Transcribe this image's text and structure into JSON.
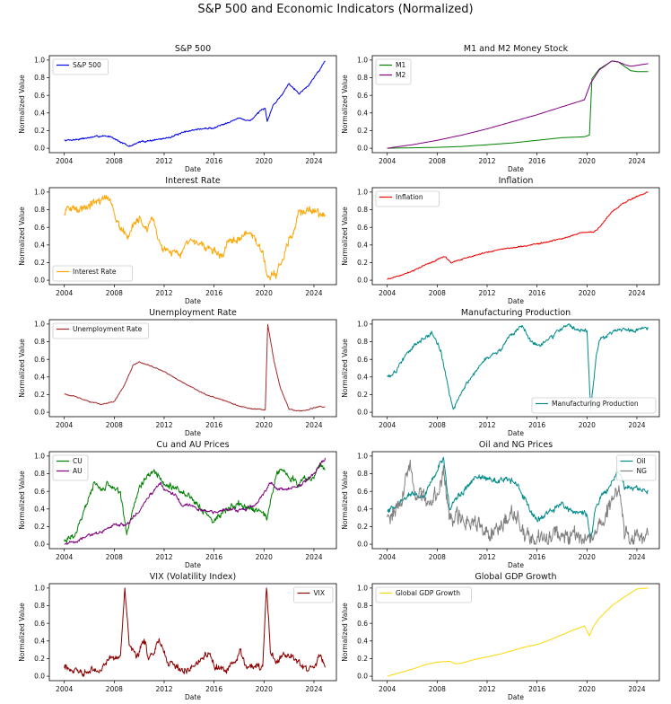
{
  "figure": {
    "title": "S&P 500 and Economic Indicators (Normalized)"
  },
  "chart_data": [
    {
      "type": "line",
      "title": "S&P 500",
      "xlabel": "Date",
      "ylabel": "Normalized Value",
      "xlim": [
        2002.8,
        2025.8
      ],
      "ylim": [
        -0.05,
        1.05
      ],
      "legend": "upper left",
      "x_ticks": [
        "2004",
        "2008",
        "2012",
        "2016",
        "2020",
        "2024"
      ],
      "y_ticks": [
        "0.0",
        "0.2",
        "0.4",
        "0.6",
        "0.8",
        "1.0"
      ],
      "series": [
        {
          "name": "S&P 500",
          "color": "#0000ee",
          "noise": 0.008,
          "x": [
            2004,
            2005,
            2006,
            2007,
            2007.8,
            2008.5,
            2009.2,
            2010,
            2011,
            2012,
            2013,
            2014,
            2015,
            2016,
            2017,
            2018,
            2018.9,
            2019.5,
            2020.1,
            2020.25,
            2020.7,
            2021.5,
            2022,
            2022.8,
            2023.5,
            2024.3,
            2024.9
          ],
          "y": [
            0.09,
            0.1,
            0.12,
            0.14,
            0.13,
            0.07,
            0.02,
            0.07,
            0.09,
            0.11,
            0.15,
            0.2,
            0.22,
            0.23,
            0.29,
            0.34,
            0.31,
            0.4,
            0.45,
            0.3,
            0.48,
            0.62,
            0.74,
            0.62,
            0.7,
            0.86,
            0.99
          ]
        }
      ]
    },
    {
      "type": "line",
      "title": "M1 and M2 Money Stock",
      "xlabel": "Date",
      "ylabel": "Normalized Value",
      "xlim": [
        2002.8,
        2025.8
      ],
      "ylim": [
        -0.05,
        1.05
      ],
      "legend": "upper left",
      "x_ticks": [
        "2004",
        "2008",
        "2012",
        "2016",
        "2020",
        "2024"
      ],
      "y_ticks": [
        "0.0",
        "0.2",
        "0.4",
        "0.6",
        "0.8",
        "1.0"
      ],
      "series": [
        {
          "name": "M1",
          "color": "#008000",
          "noise": 0,
          "x": [
            2004,
            2008,
            2010,
            2012,
            2014,
            2016,
            2018,
            2019.8,
            2020.2,
            2020.4,
            2021,
            2022,
            2022.5,
            2023,
            2023.5,
            2024,
            2024.9
          ],
          "y": [
            0.0,
            0.01,
            0.02,
            0.04,
            0.06,
            0.09,
            0.12,
            0.13,
            0.15,
            0.79,
            0.9,
            0.99,
            0.98,
            0.93,
            0.88,
            0.87,
            0.87
          ]
        },
        {
          "name": "M2",
          "color": "#800080",
          "noise": 0,
          "x": [
            2004,
            2006,
            2008,
            2010,
            2012,
            2014,
            2016,
            2018,
            2019.8,
            2020.3,
            2021,
            2022,
            2022.5,
            2023,
            2023.5,
            2024,
            2024.9
          ],
          "y": [
            0.0,
            0.04,
            0.09,
            0.15,
            0.22,
            0.3,
            0.38,
            0.47,
            0.55,
            0.74,
            0.89,
            0.99,
            0.98,
            0.95,
            0.93,
            0.94,
            0.96
          ]
        }
      ]
    },
    {
      "type": "line",
      "title": "Interest Rate",
      "xlabel": "Date",
      "ylabel": "Normalized Value",
      "xlim": [
        2002.8,
        2025.8
      ],
      "ylim": [
        -0.05,
        1.05
      ],
      "legend": "lower left",
      "x_ticks": [
        "2004",
        "2008",
        "2012",
        "2016",
        "2020",
        "2024"
      ],
      "y_ticks": [
        "0.0",
        "0.2",
        "0.4",
        "0.6",
        "0.8",
        "1.0"
      ],
      "series": [
        {
          "name": "Interest Rate",
          "color": "#ffa500",
          "noise": 0.04,
          "x": [
            2004,
            2004.5,
            2005,
            2006,
            2006.7,
            2007.5,
            2008,
            2008.5,
            2009,
            2010,
            2010.6,
            2011,
            2011.6,
            2012.5,
            2013.5,
            2014,
            2015,
            2016,
            2016.6,
            2017,
            2018,
            2018.8,
            2019.5,
            2020,
            2020.3,
            2021,
            2021.5,
            2022,
            2022.8,
            2023.5,
            2024,
            2024.9
          ],
          "y": [
            0.76,
            0.82,
            0.8,
            0.87,
            0.86,
            0.96,
            0.78,
            0.6,
            0.5,
            0.7,
            0.55,
            0.68,
            0.42,
            0.33,
            0.3,
            0.47,
            0.4,
            0.32,
            0.25,
            0.44,
            0.47,
            0.56,
            0.38,
            0.25,
            0.05,
            0.06,
            0.24,
            0.45,
            0.75,
            0.8,
            0.78,
            0.73
          ]
        }
      ]
    },
    {
      "type": "line",
      "title": "Inflation",
      "xlabel": "Date",
      "ylabel": "Normalized Value",
      "xlim": [
        2002.8,
        2025.8
      ],
      "ylim": [
        -0.05,
        1.05
      ],
      "legend": "upper left",
      "x_ticks": [
        "2004",
        "2008",
        "2012",
        "2016",
        "2020",
        "2024"
      ],
      "y_ticks": [
        "0.0",
        "0.2",
        "0.4",
        "0.6",
        "0.8",
        "1.0"
      ],
      "series": [
        {
          "name": "Inflation",
          "color": "#ee0000",
          "noise": 0.006,
          "x": [
            2004,
            2006,
            2007,
            2008.6,
            2009.1,
            2010,
            2011,
            2012,
            2014,
            2016,
            2018,
            2019.5,
            2020.2,
            2020.5,
            2021,
            2022,
            2023,
            2024,
            2024.9
          ],
          "y": [
            0.01,
            0.1,
            0.17,
            0.27,
            0.2,
            0.24,
            0.28,
            0.32,
            0.37,
            0.41,
            0.47,
            0.54,
            0.55,
            0.54,
            0.6,
            0.78,
            0.88,
            0.95,
            1.0
          ]
        }
      ]
    },
    {
      "type": "line",
      "title": "Unemployment Rate",
      "xlabel": "Date",
      "ylabel": "Normalized Value",
      "xlim": [
        2002.8,
        2025.8
      ],
      "ylim": [
        -0.05,
        1.05
      ],
      "legend": "upper left",
      "x_ticks": [
        "2004",
        "2008",
        "2012",
        "2016",
        "2020",
        "2024"
      ],
      "y_ticks": [
        "0.0",
        "0.2",
        "0.4",
        "0.6",
        "0.8",
        "1.0"
      ],
      "series": [
        {
          "name": "Unemployment Rate",
          "color": "#a52a2a",
          "noise": 0.005,
          "x": [
            2004,
            2005,
            2006,
            2007,
            2008,
            2008.8,
            2009.5,
            2010,
            2011,
            2012,
            2013,
            2014,
            2015,
            2016,
            2017,
            2018,
            2019,
            2020.1,
            2020.3,
            2020.8,
            2021.3,
            2022,
            2023,
            2024,
            2024.5,
            2024.9
          ],
          "y": [
            0.21,
            0.17,
            0.12,
            0.09,
            0.12,
            0.3,
            0.53,
            0.57,
            0.52,
            0.46,
            0.38,
            0.3,
            0.22,
            0.17,
            0.12,
            0.07,
            0.04,
            0.03,
            1.0,
            0.58,
            0.28,
            0.04,
            0.01,
            0.05,
            0.07,
            0.06
          ]
        }
      ]
    },
    {
      "type": "line",
      "title": "Manufacturing Production",
      "xlabel": "Date",
      "ylabel": "Normalized Value",
      "xlim": [
        2002.8,
        2025.8
      ],
      "ylim": [
        -0.05,
        1.05
      ],
      "legend": "lower right",
      "x_ticks": [
        "2004",
        "2008",
        "2012",
        "2016",
        "2020",
        "2024"
      ],
      "y_ticks": [
        "0.0",
        "0.2",
        "0.4",
        "0.6",
        "0.8",
        "1.0"
      ],
      "series": [
        {
          "name": "Manufacturing Production",
          "color": "#008b8b",
          "noise": 0.02,
          "x": [
            2004,
            2004.7,
            2005,
            2006,
            2007,
            2007.6,
            2008.3,
            2009,
            2009.3,
            2010,
            2011,
            2012,
            2013,
            2014,
            2014.8,
            2015.5,
            2016,
            2017,
            2018,
            2018.6,
            2019.5,
            2020,
            2020.3,
            2020.7,
            2021,
            2022,
            2023,
            2024,
            2024.9
          ],
          "y": [
            0.4,
            0.46,
            0.55,
            0.73,
            0.85,
            0.89,
            0.7,
            0.2,
            0.01,
            0.25,
            0.45,
            0.62,
            0.7,
            0.88,
            0.98,
            0.8,
            0.76,
            0.83,
            0.95,
            0.99,
            0.92,
            0.93,
            0.02,
            0.6,
            0.82,
            0.91,
            0.93,
            0.93,
            0.95
          ]
        }
      ]
    },
    {
      "type": "line",
      "title": "Cu and AU Prices",
      "xlabel": "Date",
      "ylabel": "Normalized Value",
      "xlim": [
        2002.8,
        2025.8
      ],
      "ylim": [
        -0.05,
        1.05
      ],
      "legend": "upper left",
      "x_ticks": [
        "2004",
        "2008",
        "2012",
        "2016",
        "2020",
        "2024"
      ],
      "y_ticks": [
        "0.0",
        "0.2",
        "0.4",
        "0.6",
        "0.8",
        "1.0"
      ],
      "series": [
        {
          "name": "CU",
          "color": "#008000",
          "noise": 0.03,
          "x": [
            2004,
            2005,
            2006,
            2006.4,
            2007,
            2007.5,
            2008.5,
            2009,
            2010,
            2011,
            2011.5,
            2012,
            2013,
            2014,
            2015,
            2016,
            2017,
            2018,
            2019,
            2019.9,
            2020.2,
            2021,
            2021.5,
            2022,
            2022.8,
            2023,
            2024,
            2024.4,
            2024.9
          ],
          "y": [
            0.05,
            0.12,
            0.55,
            0.72,
            0.62,
            0.7,
            0.58,
            0.1,
            0.65,
            0.82,
            0.78,
            0.68,
            0.62,
            0.55,
            0.4,
            0.28,
            0.4,
            0.45,
            0.4,
            0.38,
            0.28,
            0.82,
            0.85,
            0.78,
            0.65,
            0.72,
            0.75,
            0.92,
            0.85
          ]
        },
        {
          "name": "AU",
          "color": "#800080",
          "noise": 0.015,
          "x": [
            2004,
            2005,
            2006,
            2007,
            2008,
            2009,
            2010,
            2011,
            2011.7,
            2012,
            2013,
            2013.5,
            2014,
            2015,
            2016,
            2017,
            2018,
            2019,
            2019.5,
            2020.5,
            2021,
            2022,
            2023,
            2024,
            2024.9
          ],
          "y": [
            0.0,
            0.03,
            0.1,
            0.14,
            0.22,
            0.22,
            0.38,
            0.58,
            0.7,
            0.62,
            0.55,
            0.43,
            0.45,
            0.39,
            0.36,
            0.4,
            0.38,
            0.42,
            0.48,
            0.7,
            0.63,
            0.62,
            0.68,
            0.8,
            0.98
          ]
        }
      ]
    },
    {
      "type": "line",
      "title": "Oil and NG Prices",
      "xlabel": "Date",
      "ylabel": "Normalized Value",
      "xlim": [
        2002.8,
        2025.8
      ],
      "ylim": [
        -0.05,
        1.05
      ],
      "legend": "upper right",
      "x_ticks": [
        "2004",
        "2008",
        "2012",
        "2016",
        "2020",
        "2024"
      ],
      "y_ticks": [
        "0.0",
        "0.2",
        "0.4",
        "0.6",
        "0.8",
        "1.0"
      ],
      "series": [
        {
          "name": "Oil",
          "color": "#008b8b",
          "noise": 0.03,
          "x": [
            2004,
            2005,
            2006,
            2007,
            2008.5,
            2009,
            2009.5,
            2010,
            2011,
            2012,
            2013,
            2014,
            2014.8,
            2015.5,
            2016,
            2017,
            2018,
            2019,
            2020,
            2020.3,
            2020.6,
            2021,
            2022,
            2022.5,
            2023,
            2024,
            2024.9
          ],
          "y": [
            0.38,
            0.48,
            0.58,
            0.55,
            1.0,
            0.4,
            0.5,
            0.58,
            0.75,
            0.75,
            0.73,
            0.73,
            0.58,
            0.38,
            0.28,
            0.36,
            0.45,
            0.38,
            0.35,
            0.02,
            0.35,
            0.5,
            0.72,
            0.82,
            0.65,
            0.63,
            0.6
          ]
        },
        {
          "name": "NG",
          "color": "#808080",
          "noise": 0.08,
          "x": [
            2004,
            2005,
            2005.8,
            2006.3,
            2007,
            2008,
            2008.5,
            2009,
            2010,
            2011,
            2012,
            2012.5,
            2013,
            2014,
            2014.5,
            2015,
            2016,
            2017,
            2018,
            2019,
            2020,
            2020.5,
            2021,
            2022,
            2022.6,
            2023,
            2024,
            2024.9
          ],
          "y": [
            0.32,
            0.45,
            0.92,
            0.55,
            0.52,
            0.55,
            0.83,
            0.3,
            0.3,
            0.25,
            0.15,
            0.13,
            0.22,
            0.3,
            0.25,
            0.12,
            0.07,
            0.12,
            0.1,
            0.09,
            0.05,
            0.07,
            0.22,
            0.45,
            0.6,
            0.12,
            0.08,
            0.1
          ]
        }
      ]
    },
    {
      "type": "line",
      "title": "VIX (Volatility Index)",
      "xlabel": "Date",
      "ylabel": "Normalized Value",
      "xlim": [
        2002.8,
        2025.8
      ],
      "ylim": [
        -0.05,
        1.05
      ],
      "legend": "upper right",
      "x_ticks": [
        "2004",
        "2008",
        "2012",
        "2016",
        "2020",
        "2024"
      ],
      "y_ticks": [
        "0.0",
        "0.2",
        "0.4",
        "0.6",
        "0.8",
        "1.0"
      ],
      "series": [
        {
          "name": "VIX",
          "color": "#8b0000",
          "noise": 0.035,
          "x": [
            2004,
            2005,
            2006,
            2007,
            2007.6,
            2008,
            2008.5,
            2008.85,
            2009.2,
            2009.8,
            2010.4,
            2010.8,
            2011.6,
            2012.3,
            2013,
            2014,
            2015.6,
            2016,
            2017,
            2018.1,
            2018.5,
            2019,
            2019.9,
            2020.2,
            2020.5,
            2021,
            2022,
            2023,
            2024,
            2024.5,
            2024.9
          ],
          "y": [
            0.1,
            0.05,
            0.05,
            0.08,
            0.22,
            0.2,
            0.22,
            0.97,
            0.35,
            0.2,
            0.4,
            0.18,
            0.42,
            0.15,
            0.1,
            0.08,
            0.28,
            0.12,
            0.05,
            0.28,
            0.1,
            0.12,
            0.08,
            1.0,
            0.28,
            0.18,
            0.25,
            0.1,
            0.08,
            0.25,
            0.1
          ]
        }
      ]
    },
    {
      "type": "line",
      "title": "Global GDP Growth",
      "xlabel": "Date",
      "ylabel": "Normalized Value",
      "xlim": [
        2002.8,
        2025.8
      ],
      "ylim": [
        -0.05,
        1.05
      ],
      "legend": "upper left",
      "x_ticks": [
        "2004",
        "2008",
        "2012",
        "2016",
        "2020",
        "2024"
      ],
      "y_ticks": [
        "0.0",
        "0.2",
        "0.4",
        "0.6",
        "0.8",
        "1.0"
      ],
      "series": [
        {
          "name": "Global GDP Growth",
          "color": "#ffd700",
          "noise": 0,
          "x": [
            2004,
            2005,
            2006,
            2007,
            2008,
            2009,
            2009.5,
            2010,
            2011,
            2012,
            2013,
            2014,
            2015,
            2016,
            2017,
            2018,
            2019,
            2019.8,
            2020.2,
            2020.5,
            2021,
            2022,
            2023,
            2024,
            2024.9
          ],
          "y": [
            0.0,
            0.04,
            0.08,
            0.13,
            0.16,
            0.17,
            0.14,
            0.15,
            0.19,
            0.22,
            0.25,
            0.29,
            0.33,
            0.36,
            0.41,
            0.47,
            0.53,
            0.57,
            0.46,
            0.56,
            0.66,
            0.8,
            0.9,
            0.99,
            1.0
          ]
        }
      ]
    }
  ]
}
